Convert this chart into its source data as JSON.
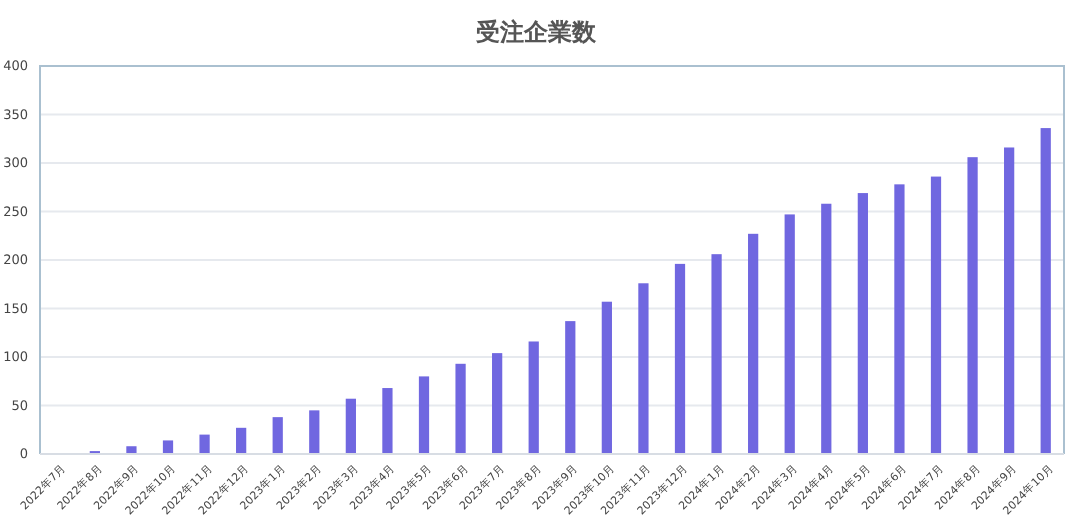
{
  "chart_data": {
    "type": "bar",
    "title": "受注企業数",
    "categories": [
      "2022年7月",
      "2022年8月",
      "2022年9月",
      "2022年10月",
      "2022年11月",
      "2022年12月",
      "2023年1月",
      "2023年2月",
      "2023年3月",
      "2023年4月",
      "2023年5月",
      "2023年6月",
      "2023年7月",
      "2023年8月",
      "2023年9月",
      "2023年10月",
      "2023年11月",
      "2023年12月",
      "2024年1月",
      "2024年2月",
      "2024年3月",
      "2024年4月",
      "2024年5月",
      "2024年6月",
      "2024年7月",
      "2024年8月",
      "2024年9月",
      "2024年10月"
    ],
    "values": [
      0,
      3,
      8,
      14,
      20,
      27,
      38,
      45,
      57,
      68,
      80,
      93,
      104,
      116,
      137,
      157,
      176,
      196,
      206,
      227,
      247,
      258,
      269,
      278,
      286,
      306,
      316,
      336
    ],
    "color": "#7067e0",
    "ylim": [
      0,
      400
    ],
    "yticks": [
      0,
      50,
      100,
      150,
      200,
      250,
      300,
      350,
      400
    ],
    "grid": "y"
  }
}
